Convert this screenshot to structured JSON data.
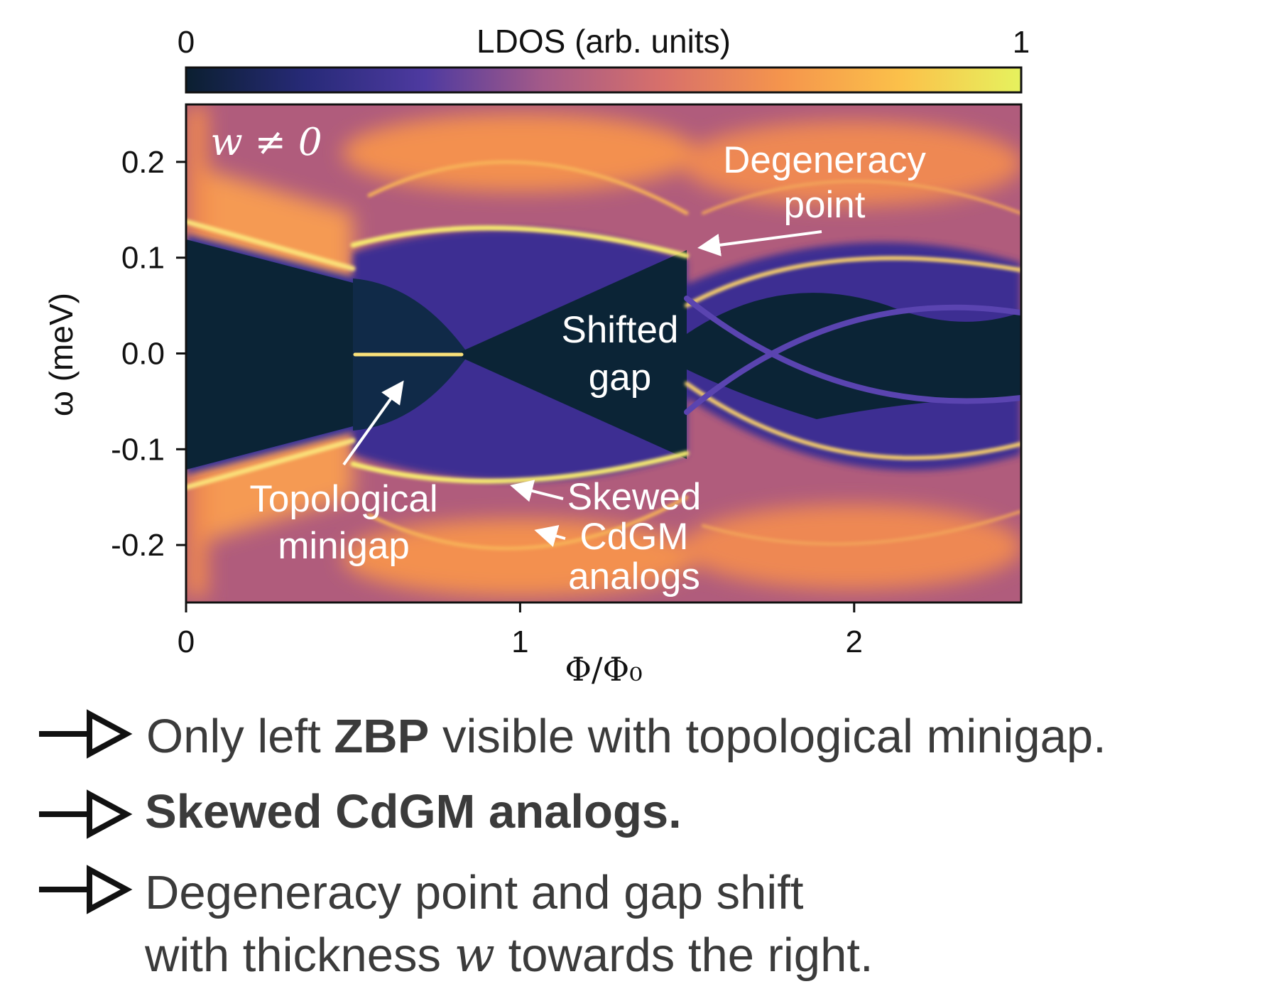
{
  "chart_data": {
    "type": "heatmap",
    "colorbar_label": "LDOS (arb. units)",
    "colorbar_ticks": [
      0,
      1
    ],
    "colormap": [
      "#0b1f30",
      "#272a78",
      "#4e3aa0",
      "#a45a88",
      "#d8706a",
      "#f5954c",
      "#fbc14a",
      "#e6f25e"
    ],
    "xlabel": "Φ/Φ₀",
    "ylabel": "ω (meV)",
    "xlim": [
      0,
      2.5
    ],
    "ylim": [
      -0.26,
      0.26
    ],
    "xticks": [
      0,
      1,
      2
    ],
    "yticks": [
      0.2,
      0.1,
      {
        "value": 0,
        "label": "0.0"
      },
      -0.1,
      -0.2
    ],
    "annotations": [
      [
        "w ≠ 0"
      ],
      [
        "Degeneracy",
        "point"
      ],
      [
        "Shifted",
        "gap"
      ],
      [
        "Topological",
        "minigap"
      ],
      [
        "Skewed",
        "CdGM",
        "analogs"
      ]
    ]
  },
  "bullets": [
    [
      "Only left ",
      "ZBP",
      " visible with topological minigap."
    ],
    [
      "Skewed CdGM analogs."
    ],
    [
      "Degeneracy point and gap shift",
      "with thickness ",
      "w",
      " towards the right."
    ]
  ]
}
